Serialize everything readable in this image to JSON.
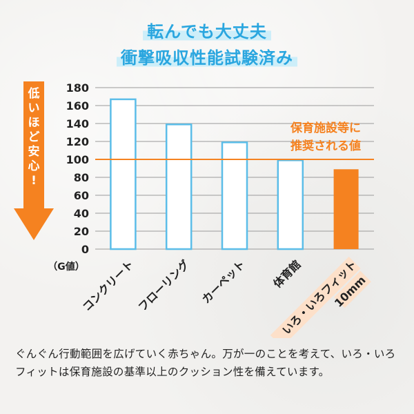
{
  "header": {
    "line1": "転んでも大丈夫",
    "line2": "衝撃吸収性能試験済み"
  },
  "side_arrow": {
    "label": "低いほど安心!"
  },
  "colors": {
    "accent_blue": "#2aa6df",
    "bar_outline": "#5bbde8",
    "accent_orange": "#f58220",
    "highlight_peach": "#fde0c9"
  },
  "chart_data": {
    "type": "bar",
    "categories": [
      "コンクリート",
      "フローリング",
      "カーペット",
      "体育館",
      "いろ・いろフィット"
    ],
    "category_sublabels": [
      "",
      "",
      "",
      "",
      "10mm"
    ],
    "values": [
      167,
      139,
      119,
      99,
      89
    ],
    "highlight_index": 4,
    "ylabel": "（G値）",
    "ylim": [
      0,
      180
    ],
    "yticks": [
      0,
      20,
      40,
      60,
      80,
      100,
      120,
      140,
      160,
      180
    ],
    "grid": true,
    "reference_line": {
      "value": 100,
      "label_lines": [
        "保育施設等に",
        "推奨される値"
      ]
    }
  },
  "caption": "ぐんぐん行動範囲を広げていく赤ちゃん。万が一のことを考えて、いろ・いろフィットは保育施設の基準以上のクッション性を備えています。"
}
